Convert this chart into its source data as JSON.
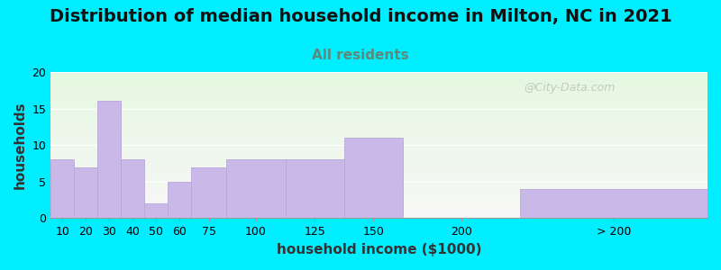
{
  "title": "Distribution of median household income in Milton, NC in 2021",
  "subtitle": "All residents",
  "xlabel": "household income ($1000)",
  "ylabel": "households",
  "background_outer": "#00eeff",
  "bar_color": "#c9b8e8",
  "bar_edge_color": "#b8a8d8",
  "categories": [
    "10",
    "20",
    "30",
    "40",
    "50",
    "60",
    "75",
    "100",
    "125",
    "150",
    "200",
    "> 200"
  ],
  "values": [
    8,
    7,
    16,
    8,
    2,
    5,
    7,
    8,
    8,
    11,
    0,
    4
  ],
  "left_edges": [
    0,
    10,
    20,
    30,
    40,
    50,
    60,
    75,
    100,
    125,
    150,
    200
  ],
  "widths": [
    10,
    10,
    10,
    10,
    10,
    10,
    15,
    25,
    25,
    25,
    50,
    80
  ],
  "ylim": [
    0,
    20
  ],
  "yticks": [
    0,
    5,
    10,
    15,
    20
  ],
  "xtick_positions": [
    5,
    15,
    25,
    35,
    45,
    55,
    67.5,
    87.5,
    112.5,
    137.5,
    175,
    240
  ],
  "xtick_labels": [
    "10",
    "20",
    "30",
    "40",
    "50",
    "60",
    "75",
    "100",
    "125",
    "150",
    "200",
    "> 200"
  ],
  "xlim": [
    0,
    280
  ],
  "title_fontsize": 14,
  "subtitle_fontsize": 11,
  "subtitle_color": "#5a8a7a",
  "axis_label_fontsize": 11,
  "tick_fontsize": 9,
  "watermark": "@City-Data.com"
}
